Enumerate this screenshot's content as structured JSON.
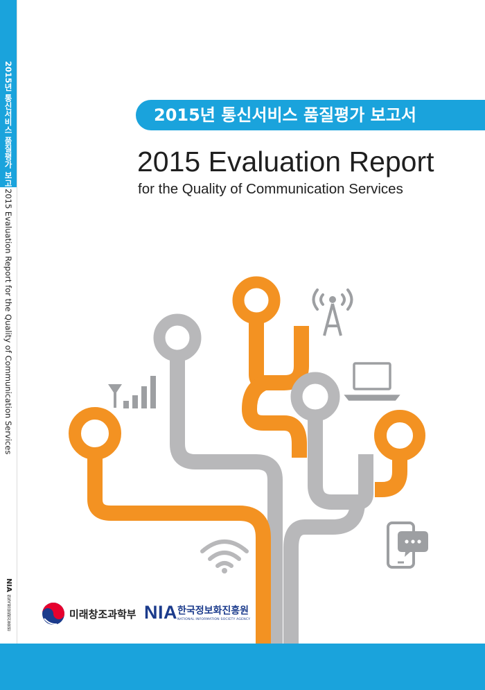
{
  "spine": {
    "title_ko": "2015년 통신서비스 품질평가 보고서",
    "title_en": "2015 Evaluation Report for the Quality of Communication Services",
    "publisher_short": "NIA",
    "publisher_ko": "한국정보화진흥원"
  },
  "cover": {
    "title_ko": "2015년 통신서비스 품질평가 보고서",
    "title_en": "2015 Evaluation Report",
    "subtitle_en": "for the Quality of Communication Services"
  },
  "icons": [
    "antenna-broadcast-icon",
    "signal-bars-icon",
    "laptop-icon",
    "wifi-icon",
    "smartphone-chat-icon"
  ],
  "publishers": {
    "ministry_name": "미래창조과학부",
    "agency_acronym": "NIA",
    "agency_name_ko": "한국정보화진흥원",
    "agency_name_en": "NATIONAL INFORMATION SOCIETY AGENCY"
  },
  "colors": {
    "accent_blue": "#1aa3dc",
    "orange": "#f39222",
    "gray": "#b8b8ba",
    "nia_blue": "#1b3b8c"
  }
}
